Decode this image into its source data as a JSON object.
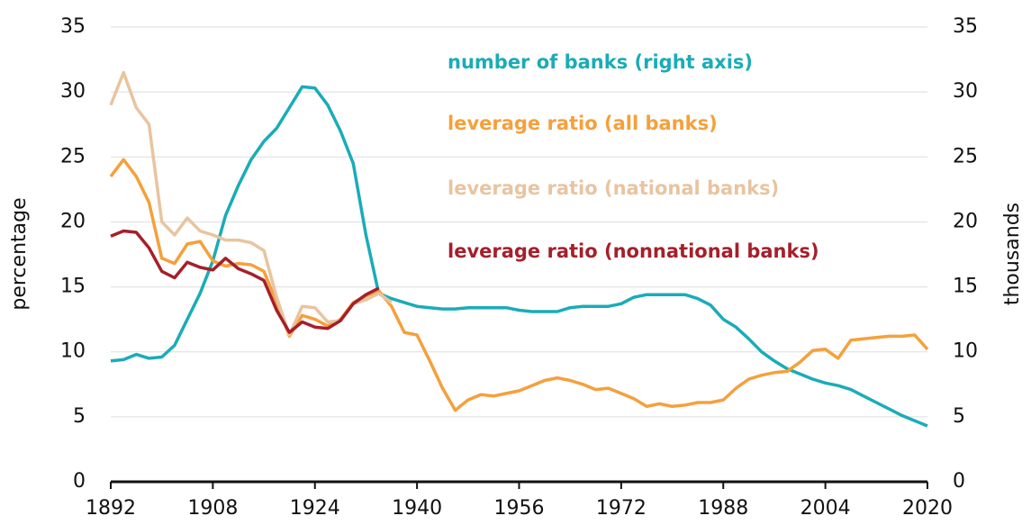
{
  "chart_data": {
    "type": "line",
    "ylabel": "percentage",
    "y2label": "thousands",
    "x": [
      1892,
      1894,
      1896,
      1898,
      1900,
      1902,
      1904,
      1906,
      1908,
      1910,
      1912,
      1914,
      1916,
      1918,
      1920,
      1922,
      1924,
      1926,
      1928,
      1930,
      1932,
      1934,
      1936,
      1938,
      1940,
      1942,
      1944,
      1946,
      1948,
      1950,
      1952,
      1954,
      1956,
      1958,
      1960,
      1962,
      1964,
      1966,
      1968,
      1970,
      1972,
      1974,
      1976,
      1978,
      1980,
      1982,
      1984,
      1986,
      1988,
      1990,
      1992,
      1994,
      1996,
      1998,
      2000,
      2002,
      2004,
      2006,
      2008,
      2010,
      2012,
      2014,
      2016,
      2018,
      2020
    ],
    "xlim": [
      1892,
      2020
    ],
    "xticks": [
      1892,
      1908,
      1924,
      1940,
      1956,
      1972,
      1988,
      2004,
      2020
    ],
    "ylim": [
      0,
      35
    ],
    "yticks": [
      0,
      5,
      10,
      15,
      20,
      25,
      30,
      35
    ],
    "y2lim": [
      0,
      35
    ],
    "y2ticks": [
      0,
      5,
      10,
      15,
      20,
      25,
      30,
      35
    ],
    "grid": true,
    "series": [
      {
        "name": "number of banks (right axis)",
        "color": "#1aacb8",
        "axis": "y2",
        "values": [
          9.3,
          9.4,
          9.8,
          9.5,
          9.6,
          10.5,
          12.5,
          14.5,
          17,
          20.5,
          22.8,
          24.8,
          26.2,
          27.2,
          28.8,
          30.4,
          30.3,
          29,
          27,
          24.5,
          19,
          14.5,
          14.1,
          13.8,
          13.5,
          13.4,
          13.3,
          13.3,
          13.4,
          13.4,
          13.4,
          13.4,
          13.2,
          13.1,
          13.1,
          13.1,
          13.4,
          13.5,
          13.5,
          13.5,
          13.7,
          14.2,
          14.4,
          14.4,
          14.4,
          14.4,
          14.1,
          13.6,
          12.5,
          11.9,
          11,
          10,
          9.3,
          8.7,
          8.3,
          7.9,
          7.6,
          7.4,
          7.1,
          6.6,
          6.1,
          5.6,
          5.1,
          4.7,
          4.3
        ]
      },
      {
        "name": "leverage ratio (all banks)",
        "color": "#f5a03c",
        "values": [
          23.5,
          24.8,
          23.5,
          21.5,
          17.2,
          16.8,
          18.3,
          18.5,
          17,
          16.6,
          16.8,
          16.7,
          16.2,
          13.8,
          11.2,
          12.8,
          12.5,
          12,
          12.5,
          13.8,
          14.3,
          14.7,
          13.5,
          11.5,
          11.3,
          9.3,
          7.2,
          5.5,
          6.3,
          6.7,
          6.6,
          6.8,
          7,
          7.4,
          7.8,
          8,
          7.8,
          7.5,
          7.1,
          7.2,
          6.8,
          6.4,
          5.8,
          6,
          5.8,
          5.9,
          6.1,
          6.1,
          6.3,
          7.2,
          7.9,
          8.2,
          8.4,
          8.5,
          9.2,
          10.1,
          10.2,
          9.5,
          10.9,
          11,
          11.1,
          11.2,
          11.2,
          11.3,
          10.2
        ]
      },
      {
        "name": "leverage ratio (national banks)",
        "color": "#e8c4a0",
        "values": [
          29,
          31.5,
          28.8,
          27.5,
          20,
          19,
          20.3,
          19.3,
          19,
          18.6,
          18.6,
          18.4,
          17.8,
          14.2,
          11.3,
          13.5,
          13.4,
          12.3,
          12.4,
          13.7,
          14,
          14.5,
          13.8,
          null,
          null,
          null,
          null,
          null,
          null,
          null,
          null,
          null,
          null,
          null,
          null,
          null,
          null,
          null,
          null,
          null,
          null,
          null,
          null,
          null,
          null,
          null,
          null,
          null,
          null,
          null,
          null,
          null,
          null,
          null,
          null,
          null,
          null,
          null,
          null,
          null,
          null,
          null,
          null,
          null,
          null
        ]
      },
      {
        "name": "leverage ratio (nonnational banks)",
        "color": "#a51f2a",
        "values": [
          18.9,
          19.3,
          19.2,
          18,
          16.2,
          15.7,
          16.9,
          16.5,
          16.3,
          17.2,
          16.4,
          16,
          15.5,
          13.2,
          11.5,
          12.3,
          11.9,
          11.8,
          12.4,
          13.7,
          14.4,
          14.9,
          null,
          null,
          null,
          null,
          null,
          null,
          null,
          null,
          null,
          null,
          null,
          null,
          null,
          null,
          null,
          null,
          null,
          null,
          null,
          null,
          null,
          null,
          null,
          null,
          null,
          null,
          null,
          null,
          null,
          null,
          null,
          null,
          null,
          null,
          null,
          null,
          null,
          null,
          null,
          null,
          null,
          null,
          null
        ]
      }
    ]
  }
}
